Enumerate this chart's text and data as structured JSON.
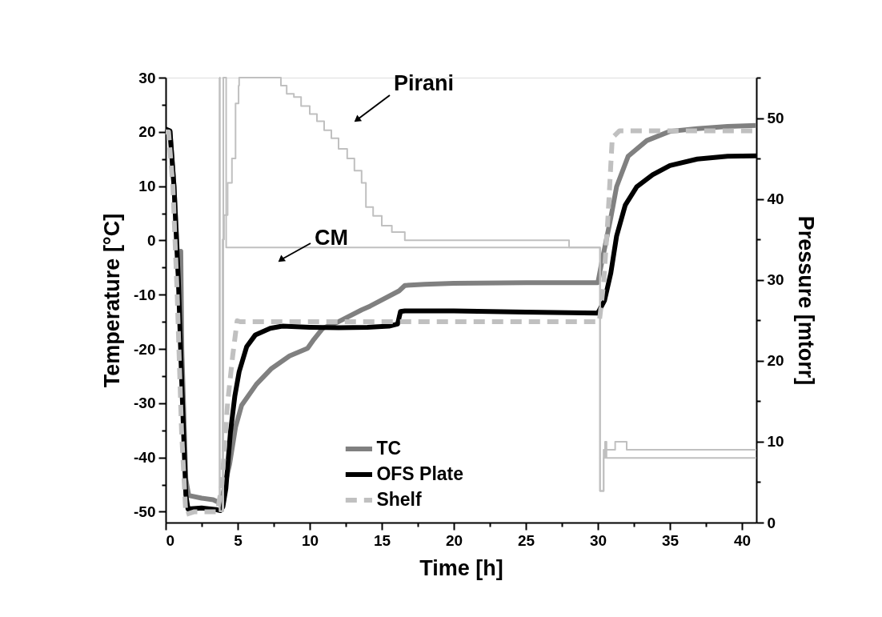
{
  "chart_data": {
    "type": "line",
    "xlabel": "Time [h]",
    "ylabel": "Temperature [°C]",
    "y2label": "Pressure [mtorr]",
    "xlim": [
      0,
      41
    ],
    "ylim": [
      -52,
      30
    ],
    "y2lim": [
      0,
      55
    ],
    "xticks": [
      0,
      {
        "value": 2.5,
        "label": null
      },
      5,
      {
        "value": 7.5,
        "label": null
      },
      10,
      {
        "value": 12.5,
        "label": null
      },
      15,
      {
        "value": 17.5,
        "label": null
      },
      20,
      {
        "value": 22.5,
        "label": null
      },
      25,
      {
        "value": 27.5,
        "label": null
      },
      30,
      {
        "value": 32.5,
        "label": null
      },
      35,
      {
        "value": 37.5,
        "label": null
      },
      40
    ],
    "yticks": [
      -50,
      {
        "value": -45,
        "label": null
      },
      -40,
      {
        "value": -35,
        "label": null
      },
      -30,
      {
        "value": -25,
        "label": null
      },
      -20,
      {
        "value": -15,
        "label": null
      },
      -10,
      {
        "value": -5,
        "label": null
      },
      0,
      {
        "value": 5,
        "label": null
      },
      10,
      {
        "value": 15,
        "label": null
      },
      20,
      {
        "value": 25,
        "label": null
      },
      30
    ],
    "y2ticks": [
      0,
      {
        "value": 5,
        "label": null
      },
      10,
      {
        "value": 15,
        "label": null
      },
      20,
      {
        "value": 25,
        "label": null
      },
      30,
      {
        "value": 35,
        "label": null
      },
      40,
      {
        "value": 45,
        "label": null
      },
      50,
      {
        "value": 55,
        "label": null
      }
    ],
    "grid": false,
    "legend": "bottom",
    "marker": "none",
    "series": [
      {
        "name": "TC",
        "color": "#808080",
        "line_style": "solid",
        "x": [
          0,
          0.3,
          0.58,
          0.88,
          1.05,
          1.12,
          1.4,
          1.6,
          2.5,
          3.3,
          3.7,
          3.95,
          4.2,
          4.44,
          4.85,
          5.27,
          6.3,
          7.35,
          8.6,
          9.85,
          10.3,
          10.9,
          11.9,
          13.6,
          14.2,
          16.2,
          16.6,
          18,
          20,
          25,
          30,
          30.25,
          30.9,
          31.3,
          32.1,
          33.4,
          35,
          36.9,
          39,
          41
        ],
        "values": [
          20,
          20,
          10,
          -6,
          -2,
          -20,
          -44,
          -47,
          -47.5,
          -47.8,
          -48.3,
          -47,
          -44,
          -41.2,
          -34.4,
          -30.4,
          -26.5,
          -23.6,
          -21.3,
          -19.9,
          -18.2,
          -16.2,
          -15.1,
          -12.8,
          -12.1,
          -9.3,
          -8.3,
          -8.1,
          -7.9,
          -7.8,
          -7.8,
          -4.3,
          4.2,
          9.9,
          15.5,
          18.4,
          20.1,
          20.6,
          21,
          21.2
        ]
      },
      {
        "name": "OFS Plate",
        "color": "#000000",
        "line_style": "solid",
        "x": [
          0,
          0.3,
          0.58,
          0.88,
          1.09,
          1.4,
          1.55,
          2.5,
          3.5,
          3.8,
          3.97,
          4.18,
          4.49,
          4.8,
          5.1,
          5.62,
          6.23,
          7.26,
          8.1,
          10,
          12,
          14,
          15.5,
          16.1,
          16.3,
          16.6,
          20,
          25,
          30,
          30.46,
          30.9,
          31.3,
          31.9,
          32.7,
          33.8,
          35,
          36.9,
          39,
          41
        ],
        "values": [
          20.5,
          20.2,
          9.9,
          -7.2,
          -24.2,
          -46.9,
          -49.5,
          -49.3,
          -49.6,
          -49.8,
          -49.1,
          -45.7,
          -35.5,
          -28.7,
          -24.2,
          -19.6,
          -17.4,
          -16.2,
          -15.8,
          -16,
          -16.1,
          -16,
          -15.8,
          -15.4,
          -13.1,
          -13,
          -13,
          -13.2,
          -13.4,
          -11.1,
          -6,
          0.8,
          6.5,
          9.9,
          12.1,
          13.8,
          15,
          15.5,
          15.6
        ]
      },
      {
        "name": "Shelf",
        "color": "#c0c0c0",
        "line_style": "dashed",
        "x": [
          0,
          0.2,
          0.5,
          0.8,
          1.1,
          1.4,
          2,
          3,
          3.6,
          3.9,
          4.3,
          4.65,
          4.96,
          5.2,
          10,
          20,
          30.1,
          30.4,
          30.7,
          31.0,
          31.5,
          41
        ],
        "values": [
          20,
          20,
          10,
          -10,
          -35,
          -50.5,
          -50,
          -50,
          -50,
          -45,
          -29.9,
          -21.3,
          -14.8,
          -15,
          -15,
          -15,
          -15,
          -8,
          4.2,
          18.9,
          20.2,
          20.2
        ]
      },
      {
        "type": "step",
        "axis": "y2",
        "color": "#c0c0c0",
        "line_style": "solid",
        "x": [
          3.72,
          3.75,
          3.95,
          4.05,
          4.3,
          4.6,
          4.85,
          5.06,
          5.1,
          8,
          8.4,
          8.9,
          9.4,
          10,
          10.5,
          11,
          11.5,
          12,
          12.6,
          13.1,
          13.6,
          13.9,
          14.4,
          15,
          15.7,
          16.6,
          28,
          30.1,
          30.15,
          30.4,
          31.2,
          32,
          41
        ],
        "values": [
          55,
          1.4,
          35,
          38,
          42,
          45,
          51.8,
          54,
          55,
          54,
          53,
          52.6,
          51.5,
          50.5,
          49.6,
          48.5,
          47.5,
          46.2,
          45,
          43.5,
          42,
          39,
          37.9,
          36.7,
          35.9,
          34.9,
          34,
          34,
          3.9,
          9,
          10,
          9,
          9
        ]
      },
      {
        "type": "step",
        "axis": "y2",
        "color": "#c0c0c0",
        "line_style": "solid",
        "x": [
          3.72,
          3.75,
          4.0,
          4.2,
          30.1,
          30.15,
          30.4,
          30.5,
          30.6,
          41
        ],
        "values": [
          55,
          1.4,
          55,
          34,
          34,
          3.9,
          8,
          10,
          8,
          8
        ]
      }
    ],
    "annotations": [
      "Pirani",
      "CM"
    ]
  }
}
